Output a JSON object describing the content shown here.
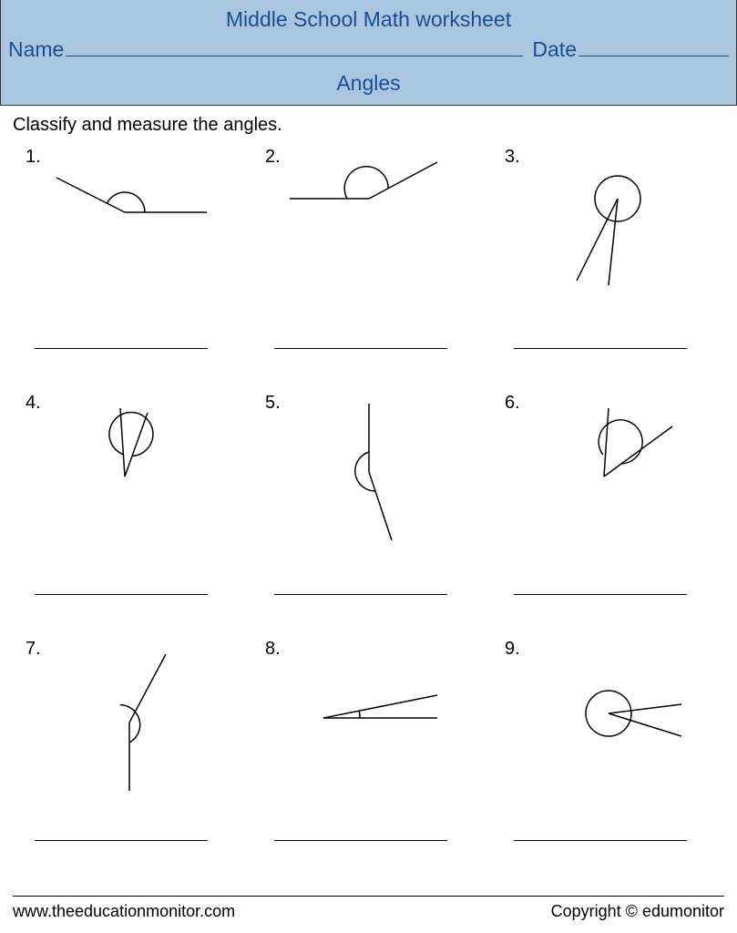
{
  "header": {
    "title": "Middle School Math worksheet",
    "name_label": "Name",
    "date_label": "Date",
    "subtitle": "Angles",
    "bg_color": "#a9c5e0",
    "text_color": "#1a4f8f"
  },
  "instruction": "Classify and measure the angles.",
  "problems": [
    {
      "num": "1.",
      "vertex": [
        90,
        60
      ],
      "rays": [
        [
          180,
          60
        ],
        [
          15,
          22
        ]
      ],
      "arc_start": 0,
      "arc_end": 155,
      "arc_r": 22,
      "arc_large": 0,
      "arc_sweep": 0
    },
    {
      "num": "2.",
      "vertex": [
        95,
        45
      ],
      "rays": [
        [
          8,
          45
        ],
        [
          170,
          5
        ]
      ],
      "arc_start": 180,
      "arc_end": 388,
      "arc_r": 24,
      "arc_large": 1,
      "arc_sweep": 1
    },
    {
      "num": "3.",
      "vertex": [
        105,
        45
      ],
      "rays": [
        [
          95,
          140
        ],
        [
          60,
          135
        ]
      ],
      "arc_start": 95,
      "arc_end": 480,
      "arc_r": 25,
      "arc_large": 1,
      "arc_sweep": 1
    },
    {
      "num": "4.",
      "vertex": [
        90,
        80
      ],
      "rays": [
        [
          85,
          5
        ],
        [
          115,
          10
        ]
      ],
      "arc_start": 93,
      "arc_end": 430,
      "arc_r": 24,
      "arc_large": 1,
      "arc_sweep": 1
    },
    {
      "num": "5.",
      "vertex": [
        95,
        75
      ],
      "rays": [
        [
          95,
          0
        ],
        [
          120,
          150
        ]
      ],
      "arc_start": 90,
      "arc_end": -72,
      "arc_r": 22,
      "arc_large": 0,
      "arc_sweep": 0
    },
    {
      "num": "6.",
      "vertex": [
        90,
        80
      ],
      "rays": [
        [
          95,
          5
        ],
        [
          165,
          25
        ]
      ],
      "arc_start": 93,
      "arc_end": 396,
      "arc_r": 24,
      "arc_large": 1,
      "arc_sweep": 1
    },
    {
      "num": "7.",
      "vertex": [
        95,
        80
      ],
      "rays": [
        [
          95,
          155
        ],
        [
          135,
          5
        ]
      ],
      "arc_start": 270,
      "arc_end": 118,
      "arc_r": 22,
      "arc_large": 0,
      "arc_sweep": 0
    },
    {
      "num": "8.",
      "vertex": [
        45,
        75
      ],
      "rays": [
        [
          170,
          75
        ],
        [
          170,
          50
        ]
      ],
      "arc_start": 0,
      "arc_end": 11,
      "arc_r": 40,
      "arc_large": 0,
      "arc_sweep": 0
    },
    {
      "num": "9.",
      "vertex": [
        95,
        70
      ],
      "rays": [
        [
          175,
          60
        ],
        [
          175,
          95
        ]
      ],
      "arc_start": 7,
      "arc_end": 377,
      "arc_r": 25,
      "arc_large": 1,
      "arc_sweep": 1
    }
  ],
  "stroke": {
    "color": "#000000",
    "width": 1.5
  },
  "svg_size": {
    "w": 190,
    "h": 160
  },
  "footer": {
    "left": "www.theeducationmonitor.com",
    "right": "Copyright © edumonitor"
  }
}
